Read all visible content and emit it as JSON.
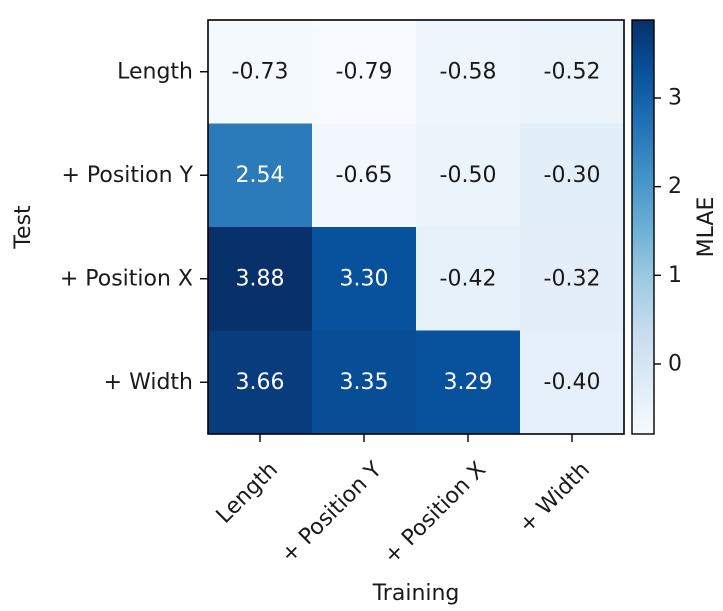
{
  "chart_data": {
    "type": "heatmap",
    "xlabel": "Training",
    "ylabel": "Test",
    "x_categories": [
      "Length",
      "+ Position Y",
      "+ Position X",
      "+ Width"
    ],
    "y_categories": [
      "Length",
      "+ Position Y",
      "+ Position X",
      "+ Width"
    ],
    "values": [
      [
        -0.73,
        -0.79,
        -0.58,
        -0.52
      ],
      [
        2.54,
        -0.65,
        -0.5,
        -0.3
      ],
      [
        3.88,
        3.3,
        -0.42,
        -0.32
      ],
      [
        3.66,
        3.35,
        3.29,
        -0.4
      ]
    ],
    "value_labels": [
      [
        "-0.73",
        "-0.79",
        "-0.58",
        "-0.52"
      ],
      [
        "2.54",
        "-0.65",
        "-0.50",
        "-0.30"
      ],
      [
        "3.88",
        "3.30",
        "-0.42",
        "-0.32"
      ],
      [
        "3.66",
        "3.35",
        "3.29",
        "-0.40"
      ]
    ],
    "colormap": "Blues",
    "color_range": [
      -0.79,
      3.88
    ],
    "colorbar": {
      "label": "MLAE",
      "ticks": [
        0,
        1,
        2,
        3
      ],
      "tick_labels": [
        "0",
        "1",
        "2",
        "3"
      ]
    },
    "grid": false
  }
}
